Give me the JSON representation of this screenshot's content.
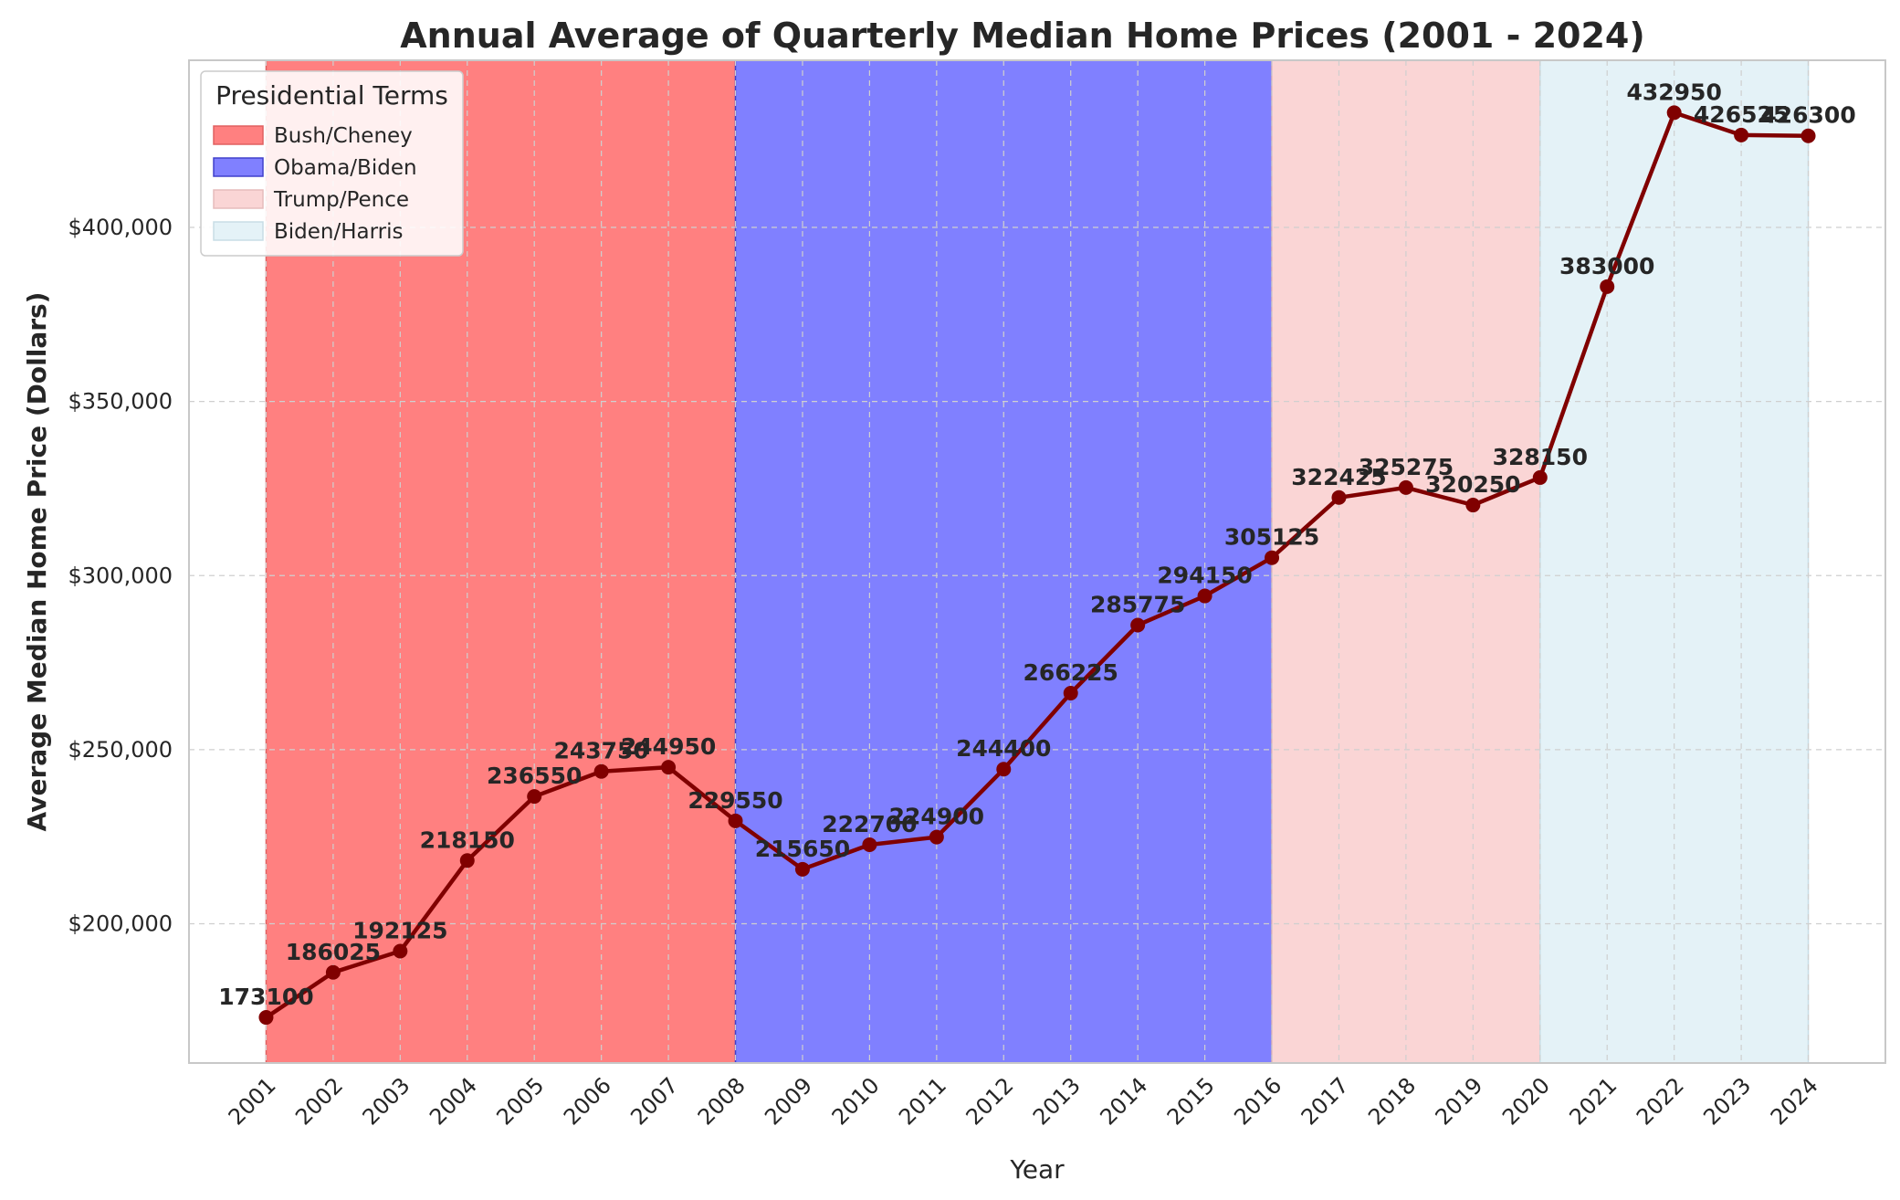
{
  "chart_data": {
    "type": "line",
    "title": "Annual Average of Quarterly Median Home Prices (2001 - 2024)",
    "xlabel": "Year",
    "ylabel": "Average Median Home Price (Dollars)",
    "x": [
      2001,
      2002,
      2003,
      2004,
      2005,
      2006,
      2007,
      2008,
      2009,
      2010,
      2011,
      2012,
      2013,
      2014,
      2015,
      2016,
      2017,
      2018,
      2019,
      2020,
      2021,
      2022,
      2023,
      2024
    ],
    "series": [
      {
        "values": [
          173100,
          186025,
          192125,
          218150,
          236550,
          243750,
          244950,
          229550,
          215650,
          222700,
          224900,
          244400,
          266225,
          285775,
          294150,
          305125,
          322425,
          325275,
          320250,
          328150,
          383000,
          432950,
          426525,
          426300
        ],
        "color": "#800000"
      }
    ],
    "ylim": [
      160000,
      448000
    ],
    "xlim": [
      1999.85,
      2025.15
    ],
    "yticks": [
      200000,
      250000,
      300000,
      350000,
      400000
    ],
    "ytick_labels": [
      "$200,000",
      "$250,000",
      "$300,000",
      "$350,000",
      "$400,000"
    ],
    "grid": true,
    "legend": {
      "title": "Presidential Terms",
      "position": "top-left",
      "entries": [
        {
          "label": "Bush/Cheney",
          "start": 2001,
          "end": 2008,
          "fill": "#ff8080",
          "edge": "#e06060"
        },
        {
          "label": "Obama/Biden",
          "start": 2008,
          "end": 2016,
          "fill": "#8080ff",
          "edge": "#4040cc"
        },
        {
          "label": "Trump/Pence",
          "start": 2016,
          "end": 2020,
          "fill": "#fad5d5",
          "edge": "#e6bcbc"
        },
        {
          "label": "Biden/Harris",
          "start": 2020,
          "end": 2024,
          "fill": "#e4f2f7",
          "edge": "#c8dde6"
        }
      ]
    }
  }
}
